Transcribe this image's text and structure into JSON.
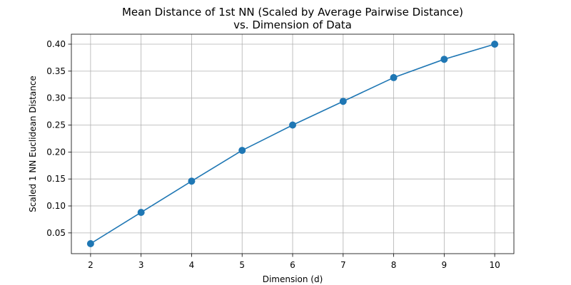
{
  "chart_data": {
    "type": "line",
    "title": "Mean Distance of 1st NN (Scaled by Average Pairwise Distance)",
    "subtitle": "vs. Dimension of Data",
    "xlabel": "Dimension (d)",
    "ylabel": "Scaled 1 NN Euclidean Distance",
    "x": [
      2,
      3,
      4,
      5,
      6,
      7,
      8,
      9,
      10
    ],
    "series": [
      {
        "values": [
          0.03,
          0.088,
          0.146,
          0.203,
          0.25,
          0.294,
          0.338,
          0.372,
          0.4
        ],
        "color": "#1f77b4",
        "marker": "circle"
      }
    ],
    "xlim": [
      1.62,
      10.38
    ],
    "ylim": [
      0.0115,
      0.4185
    ],
    "xticks": [
      2,
      3,
      4,
      5,
      6,
      7,
      8,
      9,
      10
    ],
    "xtick_labels": [
      "2",
      "3",
      "4",
      "5",
      "6",
      "7",
      "8",
      "9",
      "10"
    ],
    "yticks": [
      0.05,
      0.1,
      0.15,
      0.2,
      0.25,
      0.3,
      0.35,
      0.4
    ],
    "ytick_labels": [
      "0.05",
      "0.10",
      "0.15",
      "0.20",
      "0.25",
      "0.30",
      "0.35",
      "0.40"
    ],
    "grid": true,
    "grid_color": "#b0b0b0",
    "legend": false
  }
}
